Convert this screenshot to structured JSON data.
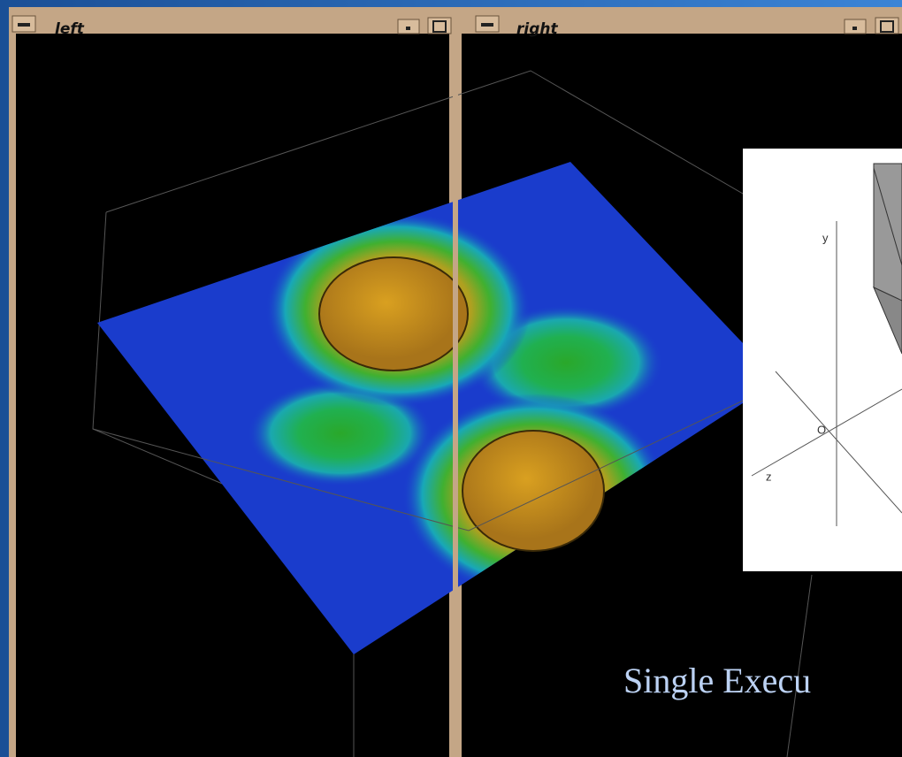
{
  "windows": [
    {
      "title": "left"
    },
    {
      "title": "right"
    }
  ],
  "inset": {
    "labels": [
      "y",
      "O",
      "z"
    ]
  },
  "caption": "Single Execu"
}
